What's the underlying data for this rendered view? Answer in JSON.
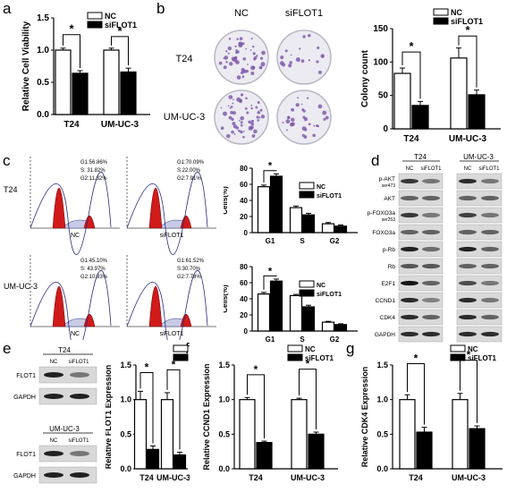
{
  "panel_letters": {
    "a": "a",
    "b": "b",
    "c": "c",
    "d": "d",
    "e": "e",
    "f": "f",
    "g": "g"
  },
  "legend": {
    "nc": "NC",
    "si": "siFLOT1"
  },
  "sig": "*",
  "chart_data": [
    {
      "id": "a",
      "type": "bar",
      "ylabel": "Relative Cell Viability",
      "categories": [
        "T24",
        "UM-UC-3"
      ],
      "series": [
        {
          "name": "NC",
          "values": [
            1.0,
            1.0
          ],
          "err": [
            0.03,
            0.03
          ]
        },
        {
          "name": "siFLOT1",
          "values": [
            0.64,
            0.66
          ],
          "err": [
            0.04,
            0.06
          ]
        }
      ],
      "ylim": [
        0,
        1.5
      ],
      "yticks": [
        "0.0",
        "0.5",
        "1.0",
        "1.5"
      ]
    },
    {
      "id": "b",
      "type": "bar",
      "ylabel": "Colony count",
      "categories": [
        "T24",
        "UM-UC-3"
      ],
      "series": [
        {
          "name": "NC",
          "values": [
            83,
            106
          ],
          "err": [
            8,
            15
          ]
        },
        {
          "name": "siFLOT1",
          "values": [
            35,
            51
          ],
          "err": [
            6,
            7
          ]
        }
      ],
      "ylim": [
        0,
        150
      ],
      "yticks": [
        "0",
        "50",
        "100",
        "150"
      ]
    },
    {
      "id": "c1",
      "type": "bar",
      "ylabel": "Cells(%)",
      "categories": [
        "G1",
        "S",
        "G2"
      ],
      "series": [
        {
          "name": "NC",
          "values": [
            57,
            31,
            11
          ],
          "err": [
            2,
            2,
            1.5
          ]
        },
        {
          "name": "siFLOT1",
          "values": [
            70,
            22,
            8
          ],
          "err": [
            3,
            2,
            1.5
          ]
        }
      ],
      "ylim": [
        0,
        80
      ],
      "yticks": [
        "0",
        "20",
        "40",
        "60",
        "80"
      ]
    },
    {
      "id": "c2",
      "type": "bar",
      "ylabel": "Cells(%)",
      "categories": [
        "G1",
        "S",
        "G2"
      ],
      "series": [
        {
          "name": "NC",
          "values": [
            46,
            44,
            11
          ],
          "err": [
            2,
            1.5,
            1
          ]
        },
        {
          "name": "siFLOT1",
          "values": [
            62,
            30,
            8
          ],
          "err": [
            2.5,
            2,
            1
          ]
        }
      ],
      "ylim": [
        0,
        80
      ],
      "yticks": [
        "0",
        "20",
        "40",
        "60",
        "80"
      ]
    },
    {
      "id": "e",
      "type": "bar",
      "ylabel": "Relative FLOT1 Expression",
      "categories": [
        "T24",
        "UM-UC-3"
      ],
      "series": [
        {
          "name": "NC",
          "values": [
            1.0,
            1.0
          ],
          "err": [
            0.12,
            0.1
          ]
        },
        {
          "name": "siFLOT1",
          "values": [
            0.28,
            0.2
          ],
          "err": [
            0.05,
            0.04
          ]
        }
      ],
      "ylim": [
        0,
        1.5
      ],
      "yticks": [
        "0.0",
        "0.5",
        "1.0",
        "1.5"
      ]
    },
    {
      "id": "f",
      "type": "bar",
      "ylabel": "Relative CCND1 Expression",
      "categories": [
        "T24",
        "UM-UC-3"
      ],
      "series": [
        {
          "name": "NC",
          "values": [
            1.0,
            1.0
          ],
          "err": [
            0.03,
            0.02
          ]
        },
        {
          "name": "siFLOT1",
          "values": [
            0.38,
            0.5
          ],
          "err": [
            0.02,
            0.03
          ]
        }
      ],
      "ylim": [
        0,
        1.5
      ],
      "yticks": [
        "0.0",
        "0.5",
        "1.0",
        "1.5"
      ]
    },
    {
      "id": "g",
      "type": "bar",
      "ylabel": "Relative CDK4 Expression",
      "categories": [
        "T24",
        "UM-UC-3"
      ],
      "series": [
        {
          "name": "NC",
          "values": [
            1.0,
            1.0
          ],
          "err": [
            0.07,
            0.09
          ]
        },
        {
          "name": "siFLOT1",
          "values": [
            0.53,
            0.58
          ],
          "err": [
            0.07,
            0.04
          ]
        }
      ],
      "ylim": [
        0,
        1.5
      ],
      "yticks": [
        "0.0",
        "0.5",
        "1.0",
        "1.5"
      ]
    }
  ],
  "colony": {
    "col_nc": "NC",
    "col_si": "siFLOT1",
    "row1": "T24",
    "row2": "UM-UC-3"
  },
  "flow": {
    "row1_label": "T24",
    "row2_label": "UM-UC-3",
    "plots": [
      {
        "stats": [
          "G1:56.86%",
          "S: 31.82%",
          "G2:11.32%"
        ],
        "xlabel": "NC"
      },
      {
        "stats": [
          "G1:70.09%",
          "S:22.00%",
          "G2:7.91%"
        ],
        "xlabel": "siFLOT1"
      },
      {
        "stats": [
          "G1:45.10%",
          "S: 43.97%",
          "G2:10.93%"
        ],
        "xlabel": "NC"
      },
      {
        "stats": [
          "G1:61.52%",
          "S:30.70%",
          "G2:7.78%"
        ],
        "xlabel": "siFLOT1"
      }
    ]
  },
  "blot_d": {
    "col1": "T24",
    "col2": "UM-UC-3",
    "lane_nc": "NC",
    "lane_si": "siFLOT1",
    "rows": [
      {
        "label": "p-AKT",
        "sub": "ser473",
        "nc": 0.75,
        "si": 0.45,
        "nc2": 0.8,
        "si2": 0.45
      },
      {
        "label": "AKT",
        "sub": "",
        "nc": 0.55,
        "si": 0.55,
        "nc2": 0.55,
        "si2": 0.55
      },
      {
        "label": "p-FOXO3a",
        "sub": "ser253",
        "nc": 0.75,
        "si": 0.45,
        "nc2": 0.7,
        "si2": 0.45
      },
      {
        "label": "FOXO3a",
        "sub": "",
        "nc": 0.55,
        "si": 0.55,
        "nc2": 0.55,
        "si2": 0.55
      },
      {
        "label": "p-Rb",
        "sub": "",
        "nc": 0.85,
        "si": 0.5,
        "nc2": 0.85,
        "si2": 0.55
      },
      {
        "label": "Rb",
        "sub": "",
        "nc": 0.6,
        "si": 0.6,
        "nc2": 0.55,
        "si2": 0.55
      },
      {
        "label": "E2F1",
        "sub": "",
        "nc": 0.9,
        "si": 0.55,
        "nc2": 0.65,
        "si2": 0.45
      },
      {
        "label": "CCND1",
        "sub": "",
        "nc": 0.8,
        "si": 0.4,
        "nc2": 0.8,
        "si2": 0.45
      },
      {
        "label": "CDK4",
        "sub": "",
        "nc": 0.8,
        "si": 0.55,
        "nc2": 0.8,
        "si2": 0.55
      },
      {
        "label": "GAPDH",
        "sub": "",
        "nc": 0.8,
        "si": 0.8,
        "nc2": 0.8,
        "si2": 0.8
      }
    ]
  },
  "blot_e": {
    "g1": "T24",
    "g2": "UM-UC-3",
    "lane_nc": "NC",
    "lane_si": "siFLOT1",
    "flot1": "FLOT1",
    "gapdh": "GAPDH"
  }
}
